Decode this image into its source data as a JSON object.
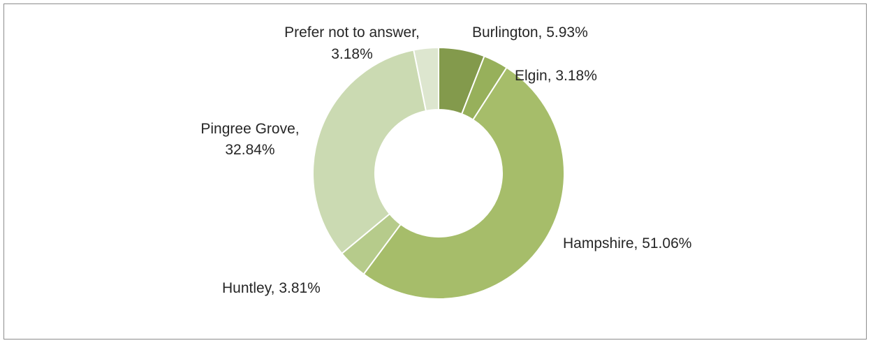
{
  "chart_data": {
    "type": "donut",
    "title": "",
    "slices": [
      {
        "name": "Burlington",
        "value": 5.93,
        "label": "Burlington, 5.93%",
        "color": "#839a4c"
      },
      {
        "name": "Elgin",
        "value": 3.18,
        "label": "Elgin, 3.18%",
        "color": "#97b05b"
      },
      {
        "name": "Hampshire",
        "value": 51.06,
        "label": "Hampshire, 51.06%",
        "color": "#a6bd6a"
      },
      {
        "name": "Huntley",
        "value": 3.81,
        "label": "Huntley, 3.81%",
        "color": "#b6cb8b"
      },
      {
        "name": "Pingree Grove",
        "value": 32.84,
        "label_lines": [
          "Pingree Grove,",
          "32.84%"
        ],
        "color": "#cbdab2"
      },
      {
        "name": "Prefer not to answer",
        "value": 3.18,
        "label_lines": [
          "Prefer not to answer,",
          "3.18%"
        ],
        "color": "#dde6cf"
      }
    ],
    "legend": "none"
  }
}
